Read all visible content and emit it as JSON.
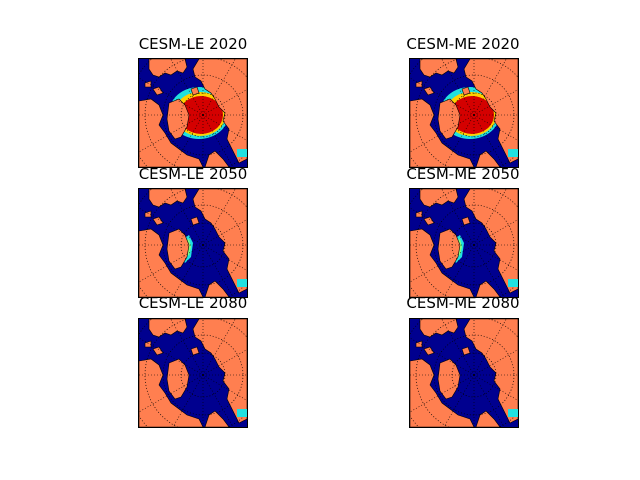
{
  "colors": {
    "ocean": "#00008f",
    "land": "#ff7f50",
    "ice_high": "#d40000",
    "ice_mid": "#ffd000",
    "ice_low": "#20e0e0",
    "edge_green": "#7fff7f"
  },
  "panels": [
    {
      "title": "CESM-LE 2020",
      "ice_level": "high"
    },
    {
      "title": "CESM-ME 2020",
      "ice_level": "high"
    },
    {
      "title": "CESM-LE 2050",
      "ice_level": "low"
    },
    {
      "title": "CESM-ME 2050",
      "ice_level": "low"
    },
    {
      "title": "CESM-LE 2080",
      "ice_level": "none"
    },
    {
      "title": "CESM-ME 2080",
      "ice_level": "none"
    }
  ]
}
